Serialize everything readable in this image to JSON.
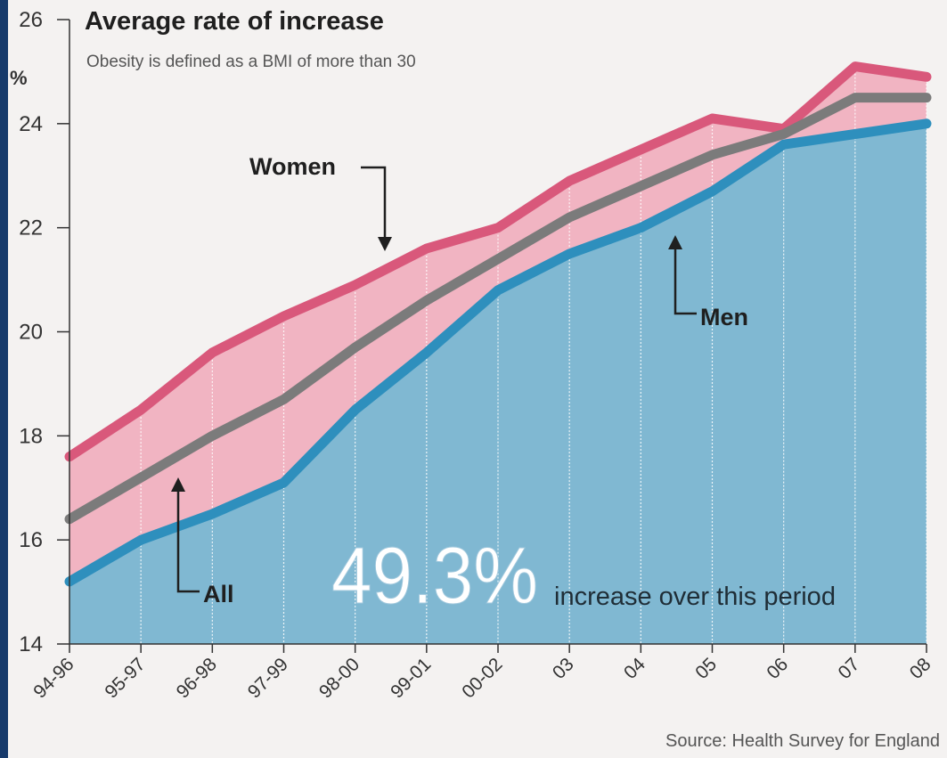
{
  "chart_data": {
    "type": "area",
    "title": "Average rate of increase",
    "subtitle": "Obesity is defined as a BMI of more than 30",
    "ylabel": "%",
    "ylim": [
      14,
      26
    ],
    "yticks": [
      "26",
      "24",
      "22",
      "20",
      "18",
      "16",
      "14"
    ],
    "ytick_values": [
      26,
      24,
      22,
      20,
      18,
      16,
      14
    ],
    "categories": [
      "94-96",
      "95-97",
      "96-98",
      "97-99",
      "98-00",
      "99-01",
      "00-02",
      "03",
      "04",
      "05",
      "06",
      "07",
      "08"
    ],
    "series": [
      {
        "name": "Women",
        "values": [
          17.6,
          18.5,
          19.6,
          20.3,
          20.9,
          21.6,
          22.0,
          22.9,
          23.5,
          24.1,
          23.9,
          25.1,
          24.9
        ]
      },
      {
        "name": "All",
        "values": [
          16.4,
          17.2,
          18.0,
          18.7,
          19.7,
          20.6,
          21.4,
          22.2,
          22.8,
          23.4,
          23.8,
          24.5,
          24.5
        ]
      },
      {
        "name": "Men",
        "values": [
          15.2,
          16.0,
          16.5,
          17.1,
          18.5,
          19.6,
          20.8,
          21.5,
          22.0,
          22.7,
          23.6,
          23.8,
          24.0
        ]
      }
    ],
    "annotations": {
      "women": "Women",
      "men": "Men",
      "all": "All",
      "big_number": "49.3%",
      "big_caption": "increase over this period"
    },
    "source": "Source: Health Survey for England",
    "colors": {
      "women": "#d9587b",
      "all": "#7b7b7b",
      "men": "#2e8fbd",
      "women_fill": "#f1b4c2",
      "men_fill": "#80b8d2",
      "grid": "#ffffff"
    }
  }
}
